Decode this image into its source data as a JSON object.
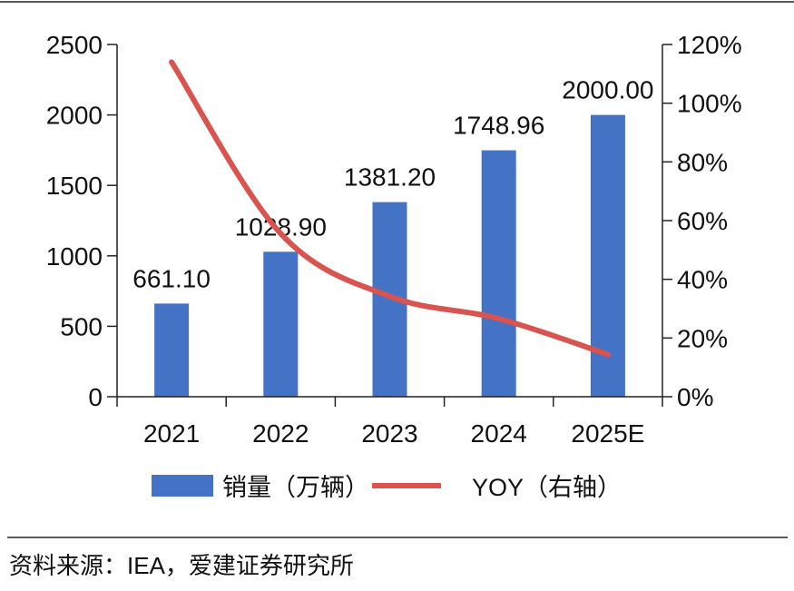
{
  "chart_data": {
    "type": "bar",
    "categories": [
      "2021",
      "2022",
      "2023",
      "2024",
      "2025E"
    ],
    "series": [
      {
        "name": "销量（万辆）",
        "axis": "left",
        "kind": "bar",
        "color": "#4472C4",
        "values": [
          661.1,
          1028.9,
          1381.2,
          1748.96,
          2000.0
        ],
        "labels": [
          "661.10",
          "1028.90",
          "1381.20",
          "1748.96",
          "2000.00"
        ]
      },
      {
        "name": "YOY（右轴）",
        "axis": "right",
        "kind": "line",
        "color": "#D9534F",
        "values": [
          114,
          55.6,
          34.2,
          26.6,
          14.4
        ]
      }
    ],
    "yleft": {
      "min": 0,
      "max": 2500,
      "ticks": [
        "0",
        "500",
        "1000",
        "1500",
        "2000",
        "2500"
      ]
    },
    "yright": {
      "min": 0,
      "max": 120,
      "ticks": [
        "0%",
        "20%",
        "40%",
        "60%",
        "80%",
        "100%",
        "120%"
      ]
    },
    "legend": "bottom",
    "grid": false
  },
  "source": "资料来源：IEA，爱建证券研究所"
}
